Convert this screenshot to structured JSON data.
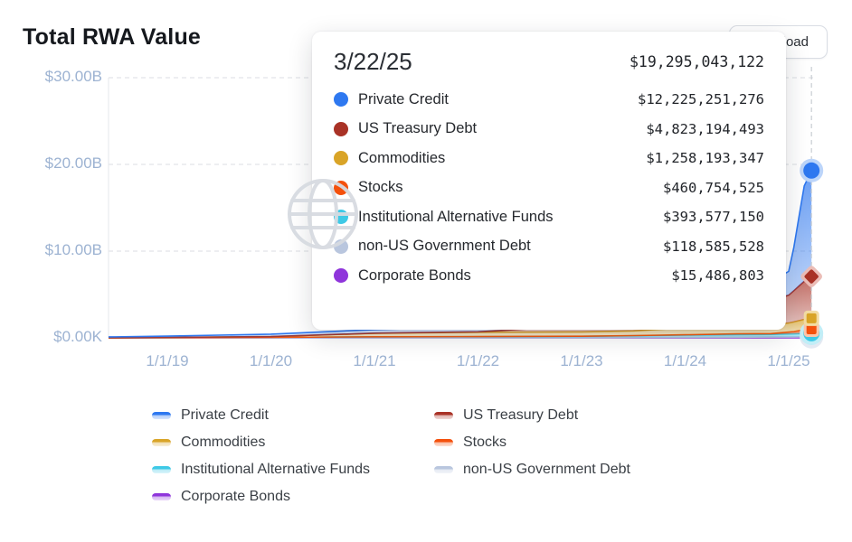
{
  "page": {
    "title": "Total RWA Value"
  },
  "toolbar": {
    "download_label": "Download"
  },
  "tooltip": {
    "date": "3/22/25",
    "total": "$19,295,043,122"
  },
  "chart_data": {
    "type": "area",
    "stacked": true,
    "title": "Total RWA Value",
    "grid": "dashed-horizontal",
    "legend_position": "bottom",
    "ylim_billions": [
      0,
      30
    ],
    "y_ticks": [
      {
        "label": "$0.00K",
        "value": 0
      },
      {
        "label": "$10.00B",
        "value": 10
      },
      {
        "label": "$20.00B",
        "value": 20
      },
      {
        "label": "$30.00B",
        "value": 30
      }
    ],
    "x_ticks": [
      {
        "label": "1/1/19",
        "year": 2019
      },
      {
        "label": "1/1/20",
        "year": 2020
      },
      {
        "label": "1/1/21",
        "year": 2021
      },
      {
        "label": "1/1/22",
        "year": 2022
      },
      {
        "label": "1/1/23",
        "year": 2023
      },
      {
        "label": "1/1/24",
        "year": 2024
      },
      {
        "label": "1/1/25",
        "year": 2025
      }
    ],
    "hover": {
      "date": "3/22/25",
      "total_label": "$19,295,043,122",
      "total_billions": 19.295,
      "x_year": 2025.22
    },
    "x_years": [
      2018.42,
      2019,
      2020,
      2021,
      2022,
      2023,
      2023.5,
      2024,
      2024.5,
      2024.83,
      2025.0,
      2025.05,
      2025.1,
      2025.15,
      2025.22
    ],
    "series": [
      {
        "name": "Private Credit",
        "color": "#2E78F0",
        "halo": "#BCD5FA",
        "marker": "circle",
        "tooltip_value": "$12,225,251,276",
        "values_billions": [
          0.1,
          0.15,
          0.28,
          0.4,
          0.55,
          0.35,
          0.4,
          0.5,
          1.8,
          2.2,
          2.75,
          5.0,
          8.0,
          11.0,
          12.225
        ]
      },
      {
        "name": "US Treasury Debt",
        "color": "#A93226",
        "halo": "#EBBDB7",
        "marker": "diamond",
        "tooltip_value": "$4,823,194,493",
        "values_billions": [
          0,
          0,
          0,
          0.02,
          0.05,
          0.7,
          1.3,
          1.8,
          2.2,
          2.8,
          3.2,
          3.6,
          4.0,
          4.4,
          4.823
        ]
      },
      {
        "name": "Commodities",
        "color": "#D9A427",
        "halo": "#F2DCA4",
        "marker": "square",
        "tooltip_value": "$1,258,193,347",
        "values_billions": [
          0,
          0.03,
          0.1,
          0.4,
          0.5,
          0.5,
          0.55,
          0.8,
          0.9,
          1.0,
          1.05,
          1.1,
          1.15,
          1.2,
          1.258
        ]
      },
      {
        "name": "Stocks",
        "color": "#F4500C",
        "halo": "#FBC6AC",
        "marker": "square",
        "tooltip_value": "$460,754,525",
        "values_billions": [
          0,
          0,
          0,
          0.01,
          0.01,
          0.01,
          0.02,
          0.05,
          0.1,
          0.1,
          0.2,
          0.25,
          0.32,
          0.4,
          0.461
        ]
      },
      {
        "name": "Institutional Alternative Funds",
        "color": "#3EC9E6",
        "halo": "#C2EEF7",
        "marker": "circle",
        "tooltip_value": "$393,577,150",
        "values_billions": [
          0,
          0.02,
          0.05,
          0.1,
          0.12,
          0.15,
          0.2,
          0.25,
          0.3,
          0.3,
          0.36,
          0.37,
          0.38,
          0.39,
          0.394
        ]
      },
      {
        "name": "non-US Government Debt",
        "color": "#B9C6DE",
        "halo": "#E3E9F2",
        "marker": "circle",
        "tooltip_value": "$118,585,528",
        "values_billions": [
          0,
          0,
          0,
          0.01,
          0.01,
          0.02,
          0.03,
          0.05,
          0.06,
          0.08,
          0.09,
          0.1,
          0.11,
          0.115,
          0.119
        ]
      },
      {
        "name": "Corporate Bonds",
        "color": "#8F35DB",
        "halo": "#E2C8F7",
        "marker": "diamond",
        "tooltip_value": "$15,486,803",
        "values_billions": [
          0,
          0,
          0,
          0.005,
          0.005,
          0.006,
          0.007,
          0.008,
          0.01,
          0.012,
          0.013,
          0.014,
          0.014,
          0.015,
          0.0155
        ]
      }
    ]
  }
}
